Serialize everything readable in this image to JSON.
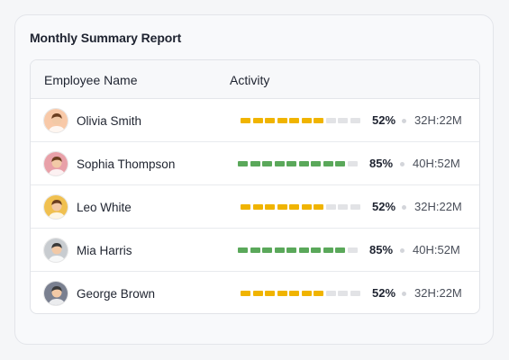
{
  "report": {
    "title": "Monthly Summary Report",
    "columns": {
      "name": "Employee Name",
      "activity": "Activity"
    },
    "rows": [
      {
        "name": "Olivia Smith",
        "percent": "52%",
        "progress": 0.52,
        "filled_segments": 7,
        "total_segments": 10,
        "color": "#f0b400",
        "time": "32H:22M",
        "avatar": "woman-avatar-icon",
        "avatar_bg": "#f8c9a8"
      },
      {
        "name": "Sophia Thompson",
        "percent": "85%",
        "progress": 0.85,
        "filled_segments": 9,
        "total_segments": 10,
        "color": "#5aa85a",
        "time": "40H:52M",
        "avatar": "woman-avatar-icon",
        "avatar_bg": "#e8a0a8"
      },
      {
        "name": "Leo White",
        "percent": "52%",
        "progress": 0.52,
        "filled_segments": 7,
        "total_segments": 10,
        "color": "#f0b400",
        "time": "32H:22M",
        "avatar": "woman-avatar-icon",
        "avatar_bg": "#f0c050"
      },
      {
        "name": "Mia Harris",
        "percent": "85%",
        "progress": 0.85,
        "filled_segments": 9,
        "total_segments": 10,
        "color": "#5aa85a",
        "time": "40H:52M",
        "avatar": "man-avatar-icon",
        "avatar_bg": "#c8ccd0"
      },
      {
        "name": "George Brown",
        "percent": "52%",
        "progress": 0.52,
        "filled_segments": 7,
        "total_segments": 10,
        "color": "#f0b400",
        "time": "32H:22M",
        "avatar": "man-avatar-icon",
        "avatar_bg": "#7a8090"
      }
    ]
  }
}
